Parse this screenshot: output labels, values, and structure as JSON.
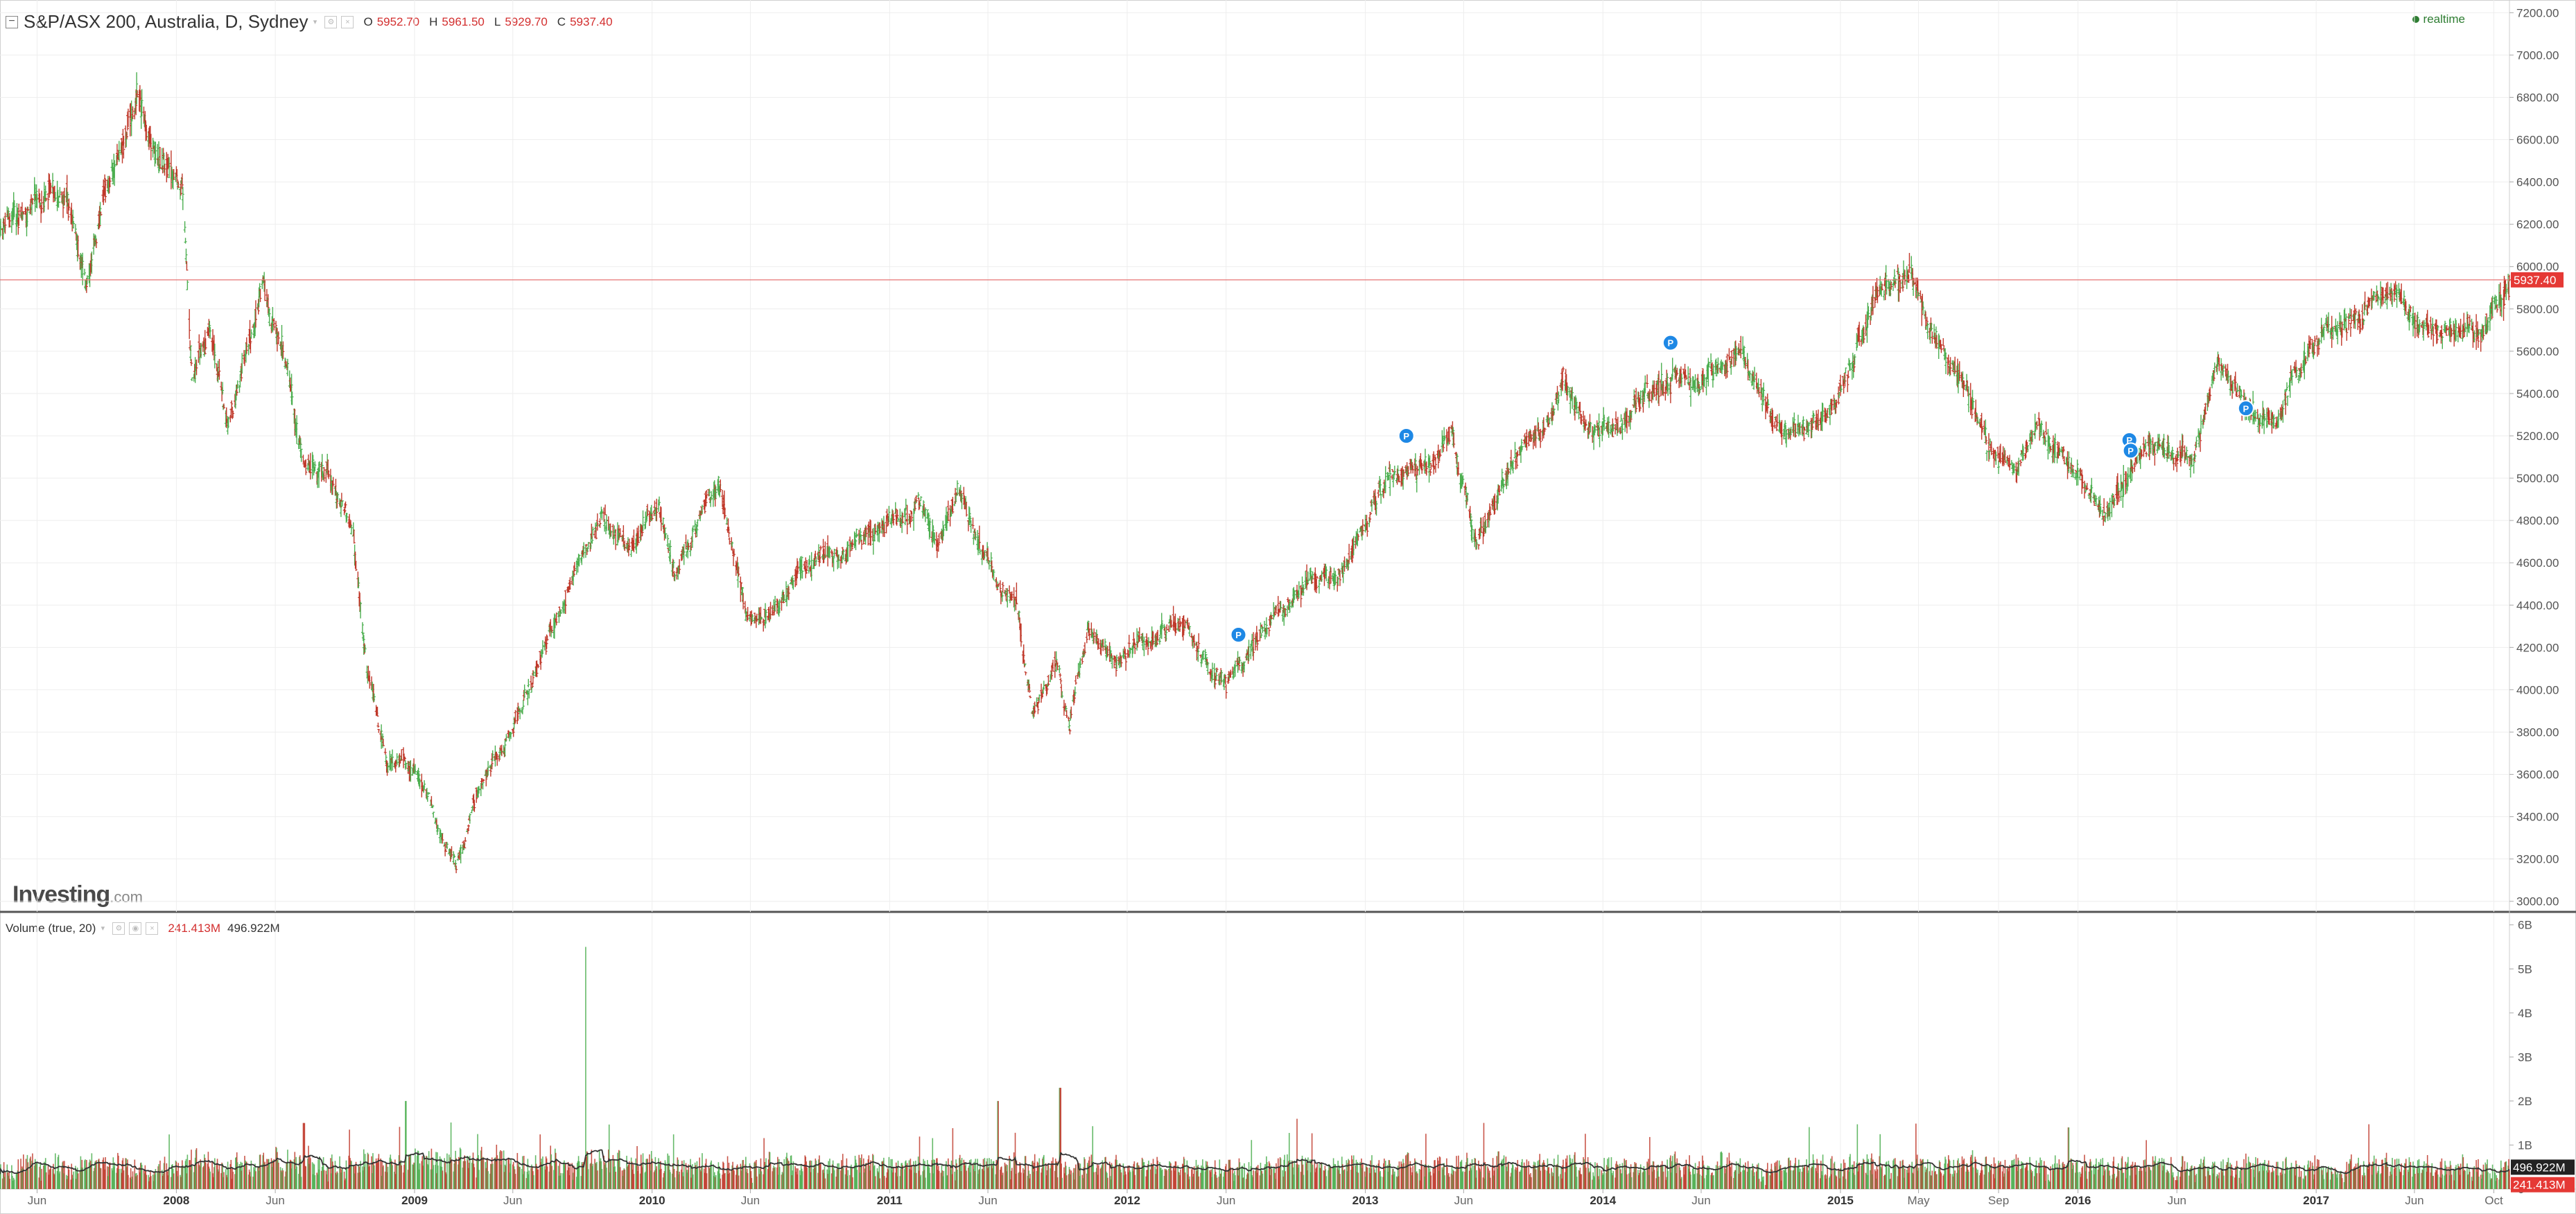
{
  "header": {
    "title": "S&P/ASX 200, Australia, D, Sydney",
    "open_label": "O",
    "open": "5952.70",
    "high_label": "H",
    "high": "5961.50",
    "low_label": "L",
    "low": "5929.70",
    "close_label": "C",
    "close": "5937.40",
    "realtime": "realtime"
  },
  "volume_header": {
    "label": "Volume (true, 20)",
    "value1": "241.413M",
    "value2": "496.922M"
  },
  "logo": {
    "main": "Investing",
    "suffix": ".com"
  },
  "colors": {
    "up": "#4caf50",
    "down": "#c0392b",
    "price_line": "#e57373",
    "price_badge": "#e53935",
    "marker": "#1e88e5",
    "volume_ma": "#333333",
    "grid": "#eeeeee"
  },
  "chart_data": [
    {
      "type": "candlestick",
      "title": "S&P/ASX 200, Australia, D, Sydney",
      "y_axis_ticks": [
        "3000.00",
        "3200.00",
        "3400.00",
        "3600.00",
        "3800.00",
        "4000.00",
        "4200.00",
        "4400.00",
        "4600.00",
        "4800.00",
        "5000.00",
        "5200.00",
        "5400.00",
        "5600.00",
        "5800.00",
        "6000.00",
        "6200.00",
        "6400.00",
        "6600.00",
        "6800.00",
        "7000.00",
        "7200.00"
      ],
      "ylim": [
        2950,
        7260
      ],
      "x_axis_ticks": [
        {
          "label": "Jun",
          "date": "2007-06-01"
        },
        {
          "label": "2008",
          "date": "2008-01-01"
        },
        {
          "label": "Jun",
          "date": "2008-06-01"
        },
        {
          "label": "2009",
          "date": "2009-01-01"
        },
        {
          "label": "Jun",
          "date": "2009-06-01"
        },
        {
          "label": "2010",
          "date": "2010-01-01"
        },
        {
          "label": "Jun",
          "date": "2010-06-01"
        },
        {
          "label": "2011",
          "date": "2011-01-01"
        },
        {
          "label": "Jun",
          "date": "2011-06-01"
        },
        {
          "label": "2012",
          "date": "2012-01-01"
        },
        {
          "label": "Jun",
          "date": "2012-06-01"
        },
        {
          "label": "2013",
          "date": "2013-01-01"
        },
        {
          "label": "Jun",
          "date": "2013-06-01"
        },
        {
          "label": "2014",
          "date": "2014-01-01"
        },
        {
          "label": "Jun",
          "date": "2014-06-01"
        },
        {
          "label": "2015",
          "date": "2015-01-01"
        },
        {
          "label": "May",
          "date": "2015-05-01"
        },
        {
          "label": "Sep",
          "date": "2015-09-01"
        },
        {
          "label": "2016",
          "date": "2016-01-01"
        },
        {
          "label": "Jun",
          "date": "2016-06-01"
        },
        {
          "label": "2017",
          "date": "2017-01-01"
        },
        {
          "label": "Jun",
          "date": "2017-06-01"
        },
        {
          "label": "Oct",
          "date": "2017-10-01"
        }
      ],
      "x_range": [
        "2007-04-05",
        "2017-10-25"
      ],
      "series": [
        {
          "name": "S&P/ASX 200",
          "approx_path": [
            [
              "2007-04-05",
              6150
            ],
            [
              "2007-05-01",
              6250
            ],
            [
              "2007-06-01",
              6300
            ],
            [
              "2007-07-15",
              6350
            ],
            [
              "2007-08-15",
              5900
            ],
            [
              "2007-09-15",
              6350
            ],
            [
              "2007-11-01",
              6800
            ],
            [
              "2007-12-01",
              6500
            ],
            [
              "2008-01-10",
              6400
            ],
            [
              "2008-01-25",
              5500
            ],
            [
              "2008-02-20",
              5700
            ],
            [
              "2008-03-20",
              5250
            ],
            [
              "2008-05-15",
              5900
            ],
            [
              "2008-06-20",
              5500
            ],
            [
              "2008-07-15",
              5050
            ],
            [
              "2008-08-20",
              5050
            ],
            [
              "2008-09-30",
              4700
            ],
            [
              "2008-10-20",
              4100
            ],
            [
              "2008-11-20",
              3600
            ],
            [
              "2008-12-15",
              3650
            ],
            [
              "2009-01-20",
              3500
            ],
            [
              "2009-03-06",
              3150
            ],
            [
              "2009-04-15",
              3600
            ],
            [
              "2009-06-15",
              3900
            ],
            [
              "2009-08-01",
              4300
            ],
            [
              "2009-09-15",
              4650
            ],
            [
              "2009-10-15",
              4800
            ],
            [
              "2009-11-30",
              4650
            ],
            [
              "2010-01-10",
              4900
            ],
            [
              "2010-02-05",
              4550
            ],
            [
              "2010-04-15",
              5000
            ],
            [
              "2010-05-25",
              4350
            ],
            [
              "2010-07-01",
              4350
            ],
            [
              "2010-08-15",
              4550
            ],
            [
              "2010-10-01",
              4650
            ],
            [
              "2010-12-15",
              4750
            ],
            [
              "2011-02-15",
              4900
            ],
            [
              "2011-03-15",
              4650
            ],
            [
              "2011-04-15",
              4950
            ],
            [
              "2011-06-01",
              4600
            ],
            [
              "2011-07-15",
              4400
            ],
            [
              "2011-08-08",
              3900
            ],
            [
              "2011-09-15",
              4100
            ],
            [
              "2011-10-04",
              3850
            ],
            [
              "2011-11-01",
              4300
            ],
            [
              "2011-12-15",
              4150
            ],
            [
              "2012-02-01",
              4250
            ],
            [
              "2012-04-01",
              4300
            ],
            [
              "2012-05-15",
              4050
            ],
            [
              "2012-06-01",
              4050
            ],
            [
              "2012-08-01",
              4300
            ],
            [
              "2012-10-01",
              4500
            ],
            [
              "2012-12-01",
              4600
            ],
            [
              "2013-02-01",
              5000
            ],
            [
              "2013-04-01",
              5050
            ],
            [
              "2013-05-15",
              5200
            ],
            [
              "2013-06-20",
              4700
            ],
            [
              "2013-08-15",
              5100
            ],
            [
              "2013-10-01",
              5250
            ],
            [
              "2013-11-01",
              5450
            ],
            [
              "2013-12-15",
              5200
            ],
            [
              "2014-02-01",
              5300
            ],
            [
              "2014-04-01",
              5450
            ],
            [
              "2014-06-01",
              5450
            ],
            [
              "2014-08-01",
              5600
            ],
            [
              "2014-09-15",
              5300
            ],
            [
              "2014-10-15",
              5200
            ],
            [
              "2014-12-15",
              5300
            ],
            [
              "2015-01-15",
              5500
            ],
            [
              "2015-03-01",
              5900
            ],
            [
              "2015-04-20",
              5950
            ],
            [
              "2015-05-15",
              5700
            ],
            [
              "2015-07-01",
              5500
            ],
            [
              "2015-08-24",
              5100
            ],
            [
              "2015-09-30",
              5050
            ],
            [
              "2015-11-01",
              5250
            ],
            [
              "2016-01-15",
              4950
            ],
            [
              "2016-02-12",
              4800
            ],
            [
              "2016-04-15",
              5200
            ],
            [
              "2016-06-27",
              5100
            ],
            [
              "2016-08-01",
              5550
            ],
            [
              "2016-09-15",
              5350
            ],
            [
              "2016-11-01",
              5250
            ],
            [
              "2016-12-01",
              5500
            ],
            [
              "2017-01-15",
              5700
            ],
            [
              "2017-03-01",
              5750
            ],
            [
              "2017-05-01",
              5900
            ],
            [
              "2017-06-15",
              5700
            ],
            [
              "2017-08-15",
              5700
            ],
            [
              "2017-09-15",
              5700
            ],
            [
              "2017-10-25",
              5937
            ]
          ]
        }
      ],
      "last_price": "5937.40",
      "markers": [
        {
          "label": "P",
          "date": "2012-06-20",
          "y": 4260
        },
        {
          "label": "P",
          "date": "2013-03-05",
          "y": 5200
        },
        {
          "label": "P",
          "date": "2014-04-15",
          "y": 5640
        },
        {
          "label": "P",
          "date": "2016-03-20",
          "y": 5180
        },
        {
          "label": "P",
          "date": "2016-03-22",
          "y": 5130
        },
        {
          "label": "P",
          "date": "2016-09-15",
          "y": 5330
        }
      ]
    },
    {
      "type": "bar",
      "title": "Volume (true, 20)",
      "y_axis_ticks": [
        "0",
        "1B",
        "2B",
        "3B",
        "4B",
        "5B",
        "6B"
      ],
      "ylim": [
        0,
        6.2
      ],
      "unit": "B",
      "typical_volume": 0.55,
      "spikes": [
        {
          "date": "2009-09-20",
          "value": 5.5
        },
        {
          "date": "2011-09-20",
          "value": 2.3
        },
        {
          "date": "2008-07-15",
          "value": 1.5
        },
        {
          "date": "2008-12-19",
          "value": 2.0
        },
        {
          "date": "2011-06-17",
          "value": 2.0
        },
        {
          "date": "2015-12-18",
          "value": 1.4
        }
      ],
      "ma_value": "496.922M",
      "last_value": "241.413M"
    }
  ]
}
